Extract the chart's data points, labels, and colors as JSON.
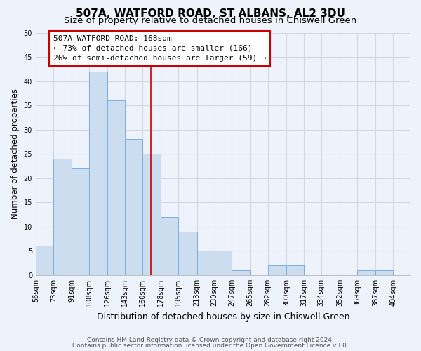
{
  "title": "507A, WATFORD ROAD, ST ALBANS, AL2 3DU",
  "subtitle": "Size of property relative to detached houses in Chiswell Green",
  "xlabel": "Distribution of detached houses by size in Chiswell Green",
  "ylabel": "Number of detached properties",
  "bin_labels": [
    "56sqm",
    "73sqm",
    "91sqm",
    "108sqm",
    "126sqm",
    "143sqm",
    "160sqm",
    "178sqm",
    "195sqm",
    "213sqm",
    "230sqm",
    "247sqm",
    "265sqm",
    "282sqm",
    "300sqm",
    "317sqm",
    "334sqm",
    "352sqm",
    "369sqm",
    "387sqm",
    "404sqm"
  ],
  "bar_lefts": [
    56,
    73,
    91,
    108,
    126,
    143,
    160,
    178,
    195,
    213,
    230,
    247,
    265,
    282,
    300,
    317,
    334,
    352,
    369,
    387
  ],
  "bar_heights": [
    6,
    24,
    22,
    42,
    36,
    28,
    25,
    12,
    9,
    5,
    5,
    1,
    0,
    2,
    2,
    0,
    0,
    0,
    1,
    1
  ],
  "bar_color": "#ccddf0",
  "bar_edge_color": "#7aafe0",
  "vline_x": 168,
  "vline_color": "#cc0000",
  "ylim": [
    0,
    50
  ],
  "xlim": [
    56,
    421
  ],
  "bin_edges": [
    56,
    73,
    91,
    108,
    126,
    143,
    160,
    178,
    195,
    213,
    230,
    247,
    265,
    282,
    300,
    317,
    334,
    352,
    369,
    387,
    404
  ],
  "annotation_title": "507A WATFORD ROAD: 168sqm",
  "annotation_line1": "← 73% of detached houses are smaller (166)",
  "annotation_line2": "26% of semi-detached houses are larger (59) →",
  "annotation_box_color": "#ffffff",
  "annotation_box_edge": "#cc0000",
  "footer1": "Contains HM Land Registry data © Crown copyright and database right 2024.",
  "footer2": "Contains public sector information licensed under the Open Government Licence v3.0.",
  "background_color": "#eef2fa",
  "grid_color": "#d0d8e8",
  "title_fontsize": 11,
  "subtitle_fontsize": 9.5,
  "tick_fontsize": 7,
  "ylabel_fontsize": 8.5,
  "xlabel_fontsize": 9,
  "annotation_fontsize": 8,
  "footer_fontsize": 6.5
}
